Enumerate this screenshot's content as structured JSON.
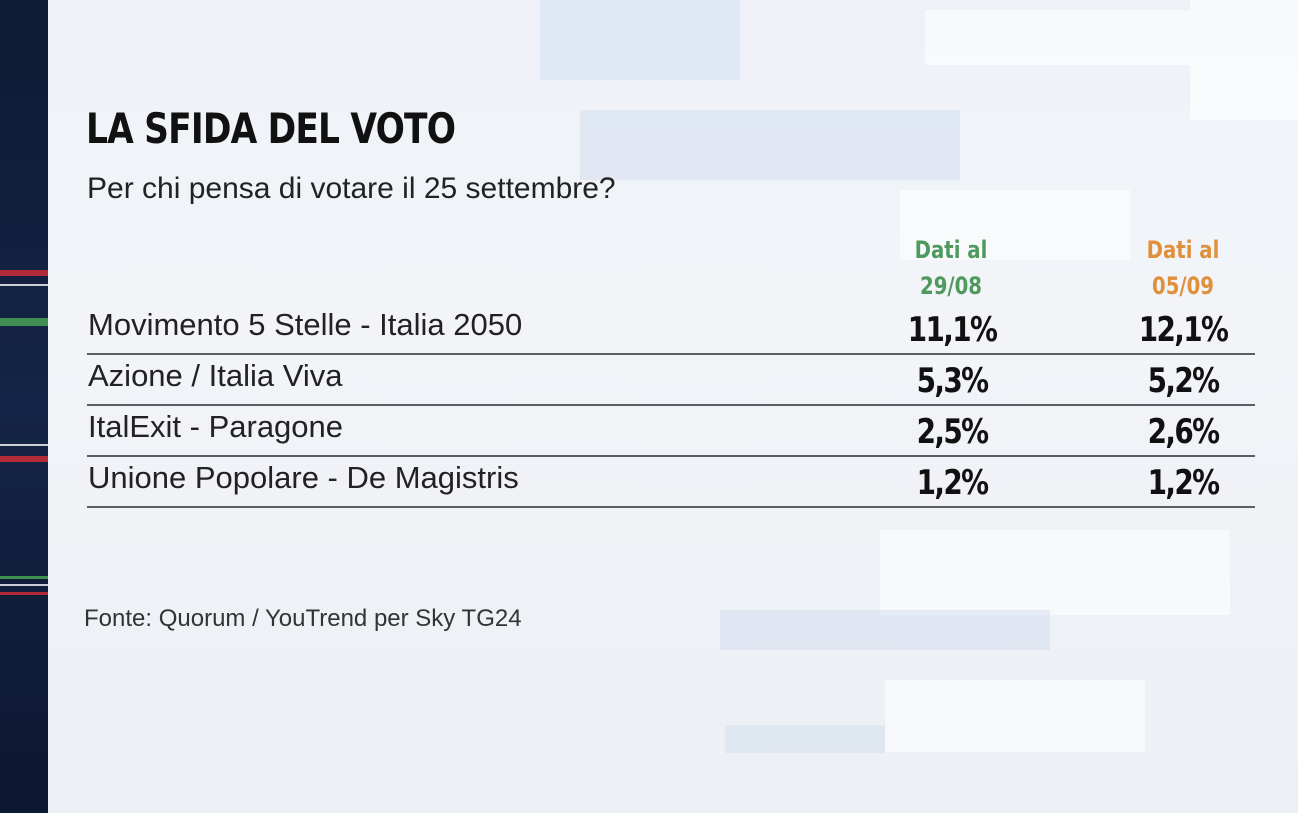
{
  "title": "LA SFIDA DEL VOTO",
  "subtitle": "Per chi pensa di votare il 25 settembre?",
  "columns": [
    {
      "line1": "Dati al",
      "line2": "29/08",
      "color": "#4e9a5e"
    },
    {
      "line1": "Dati al",
      "line2": "05/09",
      "color": "#e0903b"
    }
  ],
  "rows": [
    {
      "party": "Movimento 5 Stelle - Italia 2050",
      "v1": "11,1%",
      "v2": "12,1%"
    },
    {
      "party": "Azione / Italia Viva",
      "v1": "5,3%",
      "v2": "5,2%"
    },
    {
      "party": "ItalExit - Paragone",
      "v1": "2,5%",
      "v2": "2,6%"
    },
    {
      "party": "Unione Popolare - De Magistris",
      "v1": "1,2%",
      "v2": "1,2%"
    }
  ],
  "source": "Fonte: Quorum / YouTrend per Sky TG24"
}
